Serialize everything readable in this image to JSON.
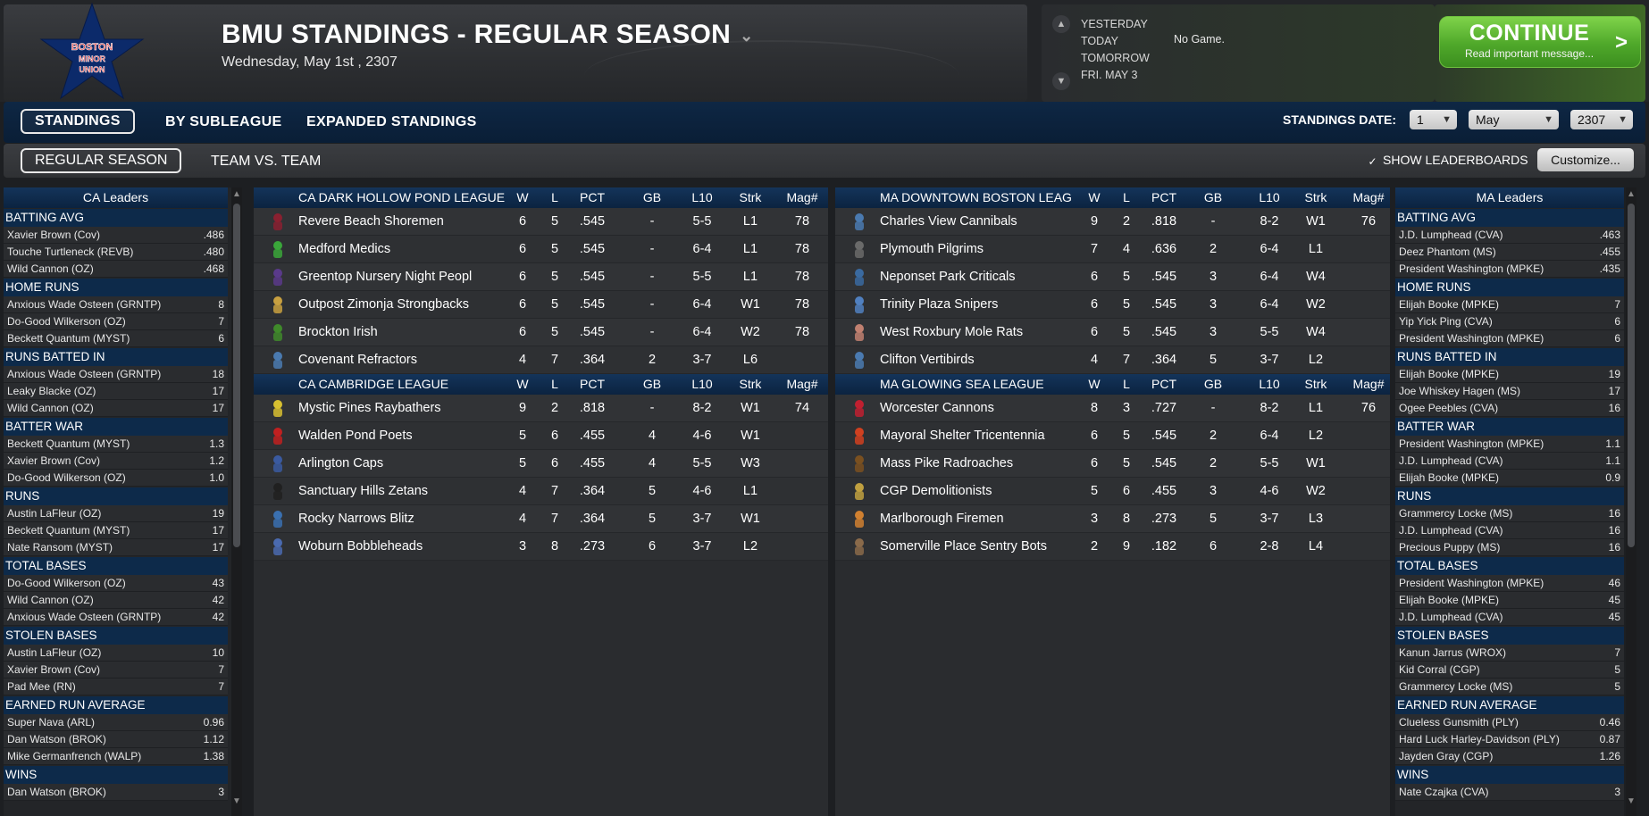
{
  "header": {
    "logo_text": "BOSTON MINOR UNION",
    "title": "BMU STANDINGS - REGULAR SEASON",
    "date": "Wednesday, May 1st , 2307"
  },
  "schedule": {
    "days": [
      "YESTERDAY",
      "TODAY",
      "TOMORROW",
      "FRI. MAY 3"
    ],
    "today_game": "No Game."
  },
  "continue_button": {
    "label": "CONTINUE",
    "sub": "Read important message...",
    "arrow": ">"
  },
  "tabs": [
    "STANDINGS",
    "BY SUBLEAGUE",
    "EXPANDED STANDINGS"
  ],
  "subtabs": [
    "REGULAR SEASON",
    "TEAM VS. TEAM"
  ],
  "standings_date": {
    "label": "STANDINGS DATE:",
    "day": "1",
    "month": "May",
    "year": "2307"
  },
  "show_leaderboards": "SHOW LEADERBOARDS",
  "customize": "Customize...",
  "columns": {
    "w": "W",
    "l": "L",
    "pct": "PCT",
    "gb": "GB",
    "l10": "L10",
    "strk": "Strk",
    "mag": "Mag#"
  },
  "leaders": {
    "ca": {
      "title": "CA Leaders",
      "categories": [
        {
          "name": "BATTING AVG",
          "rows": [
            [
              "Xavier Brown (Cov)",
              ".486"
            ],
            [
              "Touche Turtleneck (REVB)",
              ".480"
            ],
            [
              "Wild Cannon (OZ)",
              ".468"
            ]
          ]
        },
        {
          "name": "HOME RUNS",
          "rows": [
            [
              "Anxious Wade Osteen (GRNTP)",
              "8"
            ],
            [
              "Do-Good Wilkerson (OZ)",
              "7"
            ],
            [
              "Beckett Quantum (MYST)",
              "6"
            ]
          ]
        },
        {
          "name": "RUNS BATTED IN",
          "rows": [
            [
              "Anxious Wade Osteen (GRNTP)",
              "18"
            ],
            [
              "Leaky Blacke (OZ)",
              "17"
            ],
            [
              "Wild Cannon (OZ)",
              "17"
            ]
          ]
        },
        {
          "name": "BATTER WAR",
          "rows": [
            [
              "Beckett Quantum (MYST)",
              "1.3"
            ],
            [
              "Xavier Brown (Cov)",
              "1.2"
            ],
            [
              "Do-Good Wilkerson (OZ)",
              "1.0"
            ]
          ]
        },
        {
          "name": "RUNS",
          "rows": [
            [
              "Austin LaFleur (OZ)",
              "19"
            ],
            [
              "Beckett Quantum (MYST)",
              "17"
            ],
            [
              "Nate Ransom (MYST)",
              "17"
            ]
          ]
        },
        {
          "name": "TOTAL BASES",
          "rows": [
            [
              "Do-Good Wilkerson (OZ)",
              "43"
            ],
            [
              "Wild Cannon (OZ)",
              "42"
            ],
            [
              "Anxious Wade Osteen (GRNTP)",
              "42"
            ]
          ]
        },
        {
          "name": "STOLEN BASES",
          "rows": [
            [
              "Austin LaFleur (OZ)",
              "10"
            ],
            [
              "Xavier Brown (Cov)",
              "7"
            ],
            [
              "Pad Mee (RN)",
              "7"
            ]
          ]
        },
        {
          "name": "EARNED RUN AVERAGE",
          "rows": [
            [
              "Super Nava (ARL)",
              "0.96"
            ],
            [
              "Dan Watson (BROK)",
              "1.12"
            ],
            [
              "Mike Germanfrench (WALP)",
              "1.38"
            ]
          ]
        },
        {
          "name": "WINS",
          "rows": [
            [
              "Dan Watson (BROK)",
              "3"
            ]
          ]
        }
      ]
    },
    "ma": {
      "title": "MA Leaders",
      "categories": [
        {
          "name": "BATTING AVG",
          "rows": [
            [
              "J.D. Lumphead (CVA)",
              ".463"
            ],
            [
              "Deez Phantom (MS)",
              ".455"
            ],
            [
              "President Washington (MPKE)",
              ".435"
            ]
          ]
        },
        {
          "name": "HOME RUNS",
          "rows": [
            [
              "Elijah Booke (MPKE)",
              "7"
            ],
            [
              "Yip Yick Ping (CVA)",
              "6"
            ],
            [
              "President Washington (MPKE)",
              "6"
            ]
          ]
        },
        {
          "name": "RUNS BATTED IN",
          "rows": [
            [
              "Elijah Booke (MPKE)",
              "19"
            ],
            [
              "Joe Whiskey Hagen (MS)",
              "17"
            ],
            [
              "Ogee Peebles (CVA)",
              "16"
            ]
          ]
        },
        {
          "name": "BATTER WAR",
          "rows": [
            [
              "President Washington (MPKE)",
              "1.1"
            ],
            [
              "J.D. Lumphead (CVA)",
              "1.1"
            ],
            [
              "Elijah Booke (MPKE)",
              "0.9"
            ]
          ]
        },
        {
          "name": "RUNS",
          "rows": [
            [
              "Grammercy Locke (MS)",
              "16"
            ],
            [
              "J.D. Lumphead (CVA)",
              "16"
            ],
            [
              "Precious Puppy (MS)",
              "16"
            ]
          ]
        },
        {
          "name": "TOTAL BASES",
          "rows": [
            [
              "President Washington (MPKE)",
              "46"
            ],
            [
              "Elijah Booke (MPKE)",
              "45"
            ],
            [
              "J.D. Lumphead (CVA)",
              "45"
            ]
          ]
        },
        {
          "name": "STOLEN BASES",
          "rows": [
            [
              "Kanun Jarrus (WROX)",
              "7"
            ],
            [
              "Kid Corral (CGP)",
              "5"
            ],
            [
              "Grammercy Locke (MS)",
              "5"
            ]
          ]
        },
        {
          "name": "EARNED RUN AVERAGE",
          "rows": [
            [
              "Clueless Gunsmith (PLY)",
              "0.46"
            ],
            [
              "Hard Luck Harley-Davidson (PLY)",
              "0.87"
            ],
            [
              "Jayden Gray (CGP)",
              "1.26"
            ]
          ]
        },
        {
          "name": "WINS",
          "rows": [
            [
              "Nate Czajka (CVA)",
              "3"
            ]
          ]
        }
      ]
    }
  },
  "standings": {
    "left": [
      {
        "league": "CA DARK HOLLOW POND LEAGUE",
        "teams": [
          {
            "name": "Revere Beach Shoremen",
            "w": "6",
            "l": "5",
            "pct": ".545",
            "gb": "-",
            "l10": "5-5",
            "strk": "L1",
            "mag": "78",
            "icon": "#8a2030"
          },
          {
            "name": "Medford Medics",
            "w": "6",
            "l": "5",
            "pct": ".545",
            "gb": "-",
            "l10": "6-4",
            "strk": "L1",
            "mag": "78",
            "icon": "#3aa63a"
          },
          {
            "name": "Greentop Nursery Night Peopl",
            "w": "6",
            "l": "5",
            "pct": ".545",
            "gb": "-",
            "l10": "5-5",
            "strk": "L1",
            "mag": "78",
            "icon": "#5a3a8a"
          },
          {
            "name": "Outpost Zimonja Strongbacks",
            "w": "6",
            "l": "5",
            "pct": ".545",
            "gb": "-",
            "l10": "6-4",
            "strk": "W1",
            "mag": "78",
            "icon": "#c8a040"
          },
          {
            "name": "Brockton Irish",
            "w": "6",
            "l": "5",
            "pct": ".545",
            "gb": "-",
            "l10": "6-4",
            "strk": "W2",
            "mag": "78",
            "icon": "#3f8a2a"
          },
          {
            "name": "Covenant Refractors",
            "w": "4",
            "l": "7",
            "pct": ".364",
            "gb": "2",
            "l10": "3-7",
            "strk": "L6",
            "mag": "",
            "icon": "#4a7ab0"
          }
        ]
      },
      {
        "league": "CA CAMBRIDGE LEAGUE",
        "teams": [
          {
            "name": "Mystic Pines Raybathers",
            "w": "9",
            "l": "2",
            "pct": ".818",
            "gb": "-",
            "l10": "8-2",
            "strk": "W1",
            "mag": "74",
            "icon": "#d8c030"
          },
          {
            "name": "Walden Pond Poets",
            "w": "5",
            "l": "6",
            "pct": ".455",
            "gb": "4",
            "l10": "4-6",
            "strk": "W1",
            "mag": "",
            "icon": "#c02020"
          },
          {
            "name": "Arlington Caps",
            "w": "5",
            "l": "6",
            "pct": ".455",
            "gb": "4",
            "l10": "5-5",
            "strk": "W3",
            "mag": "",
            "icon": "#3a5aa0"
          },
          {
            "name": "Sanctuary Hills Zetans",
            "w": "4",
            "l": "7",
            "pct": ".364",
            "gb": "5",
            "l10": "4-6",
            "strk": "L1",
            "mag": "",
            "icon": "#202020"
          },
          {
            "name": "Rocky Narrows Blitz",
            "w": "4",
            "l": "7",
            "pct": ".364",
            "gb": "5",
            "l10": "3-7",
            "strk": "W1",
            "mag": "",
            "icon": "#3a70b0"
          },
          {
            "name": "Woburn Bobbleheads",
            "w": "3",
            "l": "8",
            "pct": ".273",
            "gb": "6",
            "l10": "3-7",
            "strk": "L2",
            "mag": "",
            "icon": "#4a6ab0"
          }
        ]
      }
    ],
    "right": [
      {
        "league": "MA DOWNTOWN BOSTON LEAG",
        "teams": [
          {
            "name": "Charles View Cannibals",
            "w": "9",
            "l": "2",
            "pct": ".818",
            "gb": "-",
            "l10": "8-2",
            "strk": "W1",
            "mag": "76",
            "icon": "#4a7ab0"
          },
          {
            "name": "Plymouth Pilgrims",
            "w": "7",
            "l": "4",
            "pct": ".636",
            "gb": "2",
            "l10": "6-4",
            "strk": "L1",
            "mag": "",
            "icon": "#6a6a6a"
          },
          {
            "name": "Neponset Park Criticals",
            "w": "6",
            "l": "5",
            "pct": ".545",
            "gb": "3",
            "l10": "6-4",
            "strk": "W4",
            "mag": "",
            "icon": "#3a6aa0"
          },
          {
            "name": "Trinity Plaza Snipers",
            "w": "6",
            "l": "5",
            "pct": ".545",
            "gb": "3",
            "l10": "6-4",
            "strk": "W2",
            "mag": "",
            "icon": "#5080c0"
          },
          {
            "name": "West Roxbury Mole Rats",
            "w": "6",
            "l": "5",
            "pct": ".545",
            "gb": "3",
            "l10": "5-5",
            "strk": "W4",
            "mag": "",
            "icon": "#c08070"
          },
          {
            "name": "Clifton Vertibirds",
            "w": "4",
            "l": "7",
            "pct": ".364",
            "gb": "5",
            "l10": "3-7",
            "strk": "L2",
            "mag": "",
            "icon": "#4a7ab0"
          }
        ]
      },
      {
        "league": "MA GLOWING SEA LEAGUE",
        "teams": [
          {
            "name": "Worcester Cannons",
            "w": "8",
            "l": "3",
            "pct": ".727",
            "gb": "-",
            "l10": "8-2",
            "strk": "L1",
            "mag": "76",
            "icon": "#c02030"
          },
          {
            "name": "Mayoral Shelter Tricentennia",
            "w": "6",
            "l": "5",
            "pct": ".545",
            "gb": "2",
            "l10": "6-4",
            "strk": "L2",
            "mag": "",
            "icon": "#d04020"
          },
          {
            "name": "Mass Pike Radroaches",
            "w": "6",
            "l": "5",
            "pct": ".545",
            "gb": "2",
            "l10": "5-5",
            "strk": "W1",
            "mag": "",
            "icon": "#7a5020"
          },
          {
            "name": "CGP Demolitionists",
            "w": "5",
            "l": "6",
            "pct": ".455",
            "gb": "3",
            "l10": "4-6",
            "strk": "W2",
            "mag": "",
            "icon": "#c0a040"
          },
          {
            "name": "Marlborough Firemen",
            "w": "3",
            "l": "8",
            "pct": ".273",
            "gb": "5",
            "l10": "3-7",
            "strk": "L3",
            "mag": "",
            "icon": "#d08030"
          },
          {
            "name": "Somerville Place Sentry Bots",
            "w": "2",
            "l": "9",
            "pct": ".182",
            "gb": "6",
            "l10": "2-8",
            "strk": "L4",
            "mag": "",
            "icon": "#8a6a4a"
          }
        ]
      }
    ]
  }
}
